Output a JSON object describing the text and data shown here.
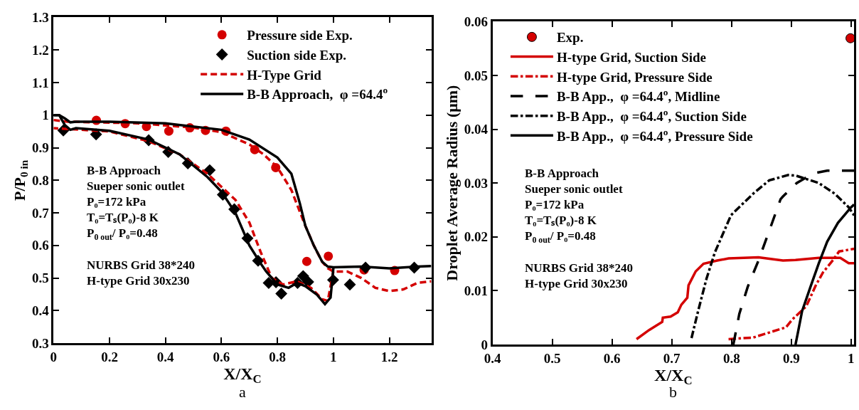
{
  "chart_data": [
    {
      "type": "line",
      "xlabel": "X/X$_{C}$",
      "ylabel": "P/P$_{0 in}$",
      "xlim": [
        0,
        1.35
      ],
      "xticks": [
        0,
        0.2,
        0.4,
        0.6,
        0.8,
        1,
        1.2
      ],
      "ylim": [
        0.3,
        1.3
      ],
      "yticks": [
        0.3,
        0.4,
        0.5,
        0.6,
        0.7,
        0.8,
        0.9,
        1,
        1.1,
        1.2,
        1.3
      ],
      "legend": "top",
      "annotations": [
        "B-B Approach\nSueper sonic outlet\nP₀=172 kPa\nT₀=Tₛ(P₀)-8 K\nP$_{0 out}$/ P₀=0.48\n\nNURBS Grid 38*240\nH-type Grid 30x230",
        "a"
      ],
      "series": [
        {
          "name": "Pressure side Exp.",
          "type": "scatter",
          "marker": "circle",
          "color": "#d40000",
          "x": [
            0.153,
            0.256,
            0.332,
            0.412,
            0.487,
            0.543,
            0.616,
            0.719,
            0.794,
            0.905,
            0.982,
            1.11,
            1.219
          ],
          "values": [
            0.984,
            0.974,
            0.965,
            0.951,
            0.961,
            0.953,
            0.951,
            0.894,
            0.839,
            0.551,
            0.567,
            0.525,
            0.523
          ]
        },
        {
          "name": "Suction side Exp.",
          "type": "scatter",
          "marker": "diamond",
          "color": "#000000",
          "x": [
            0.035,
            0.152,
            0.34,
            0.41,
            0.48,
            0.558,
            0.605,
            0.646,
            0.693,
            0.731,
            0.769,
            0.795,
            0.814,
            0.872,
            0.892,
            0.91,
            0.999,
            1.059,
            1.115,
            1.289
          ],
          "values": [
            0.953,
            0.941,
            0.923,
            0.887,
            0.852,
            0.831,
            0.756,
            0.711,
            0.622,
            0.553,
            0.485,
            0.487,
            0.452,
            0.485,
            0.506,
            0.488,
            0.494,
            0.48,
            0.532,
            0.532
          ]
        },
        {
          "name": "H-Type Grid",
          "line_style": "dashed",
          "color": "#d40000",
          "x": [
            0,
            0.05,
            0.3,
            0.5,
            0.6,
            0.7,
            0.75,
            0.8,
            0.85,
            0.9,
            0.93,
            0.96,
            0.98,
            1.0,
            1.05,
            1.1,
            1.15,
            1.2,
            1.25,
            1.3,
            1.35
          ],
          "values": [
            0.985,
            0.98,
            0.975,
            0.962,
            0.948,
            0.91,
            0.88,
            0.84,
            0.77,
            0.66,
            0.6,
            0.55,
            0.53,
            0.52,
            0.52,
            0.5,
            0.47,
            0.46,
            0.465,
            0.485,
            0.49
          ]
        },
        {
          "line_style": "dashed",
          "color": "#d40000",
          "x": [
            1.0,
            0.98,
            0.96,
            0.92,
            0.87,
            0.82,
            0.78,
            0.74,
            0.7,
            0.65,
            0.6,
            0.55,
            0.45,
            0.34,
            0.2,
            0.1,
            0
          ],
          "values": [
            0.52,
            0.43,
            0.435,
            0.47,
            0.49,
            0.48,
            0.5,
            0.58,
            0.67,
            0.74,
            0.78,
            0.82,
            0.88,
            0.92,
            0.95,
            0.955,
            0.96
          ]
        },
        {
          "name": "B-B Approach,  φ =64.4$^{o}$",
          "line_style": "solid",
          "color": "#000000",
          "x": [
            0,
            0.02,
            0.04,
            0.06,
            0.08,
            0.2,
            0.4,
            0.6,
            0.7,
            0.8,
            0.85,
            0.88,
            0.9,
            0.93,
            0.96,
            0.98,
            1.0,
            1.1,
            1.2,
            1.3,
            1.35
          ],
          "values": [
            1.0,
            1.0,
            0.99,
            0.978,
            0.98,
            0.98,
            0.975,
            0.955,
            0.925,
            0.87,
            0.82,
            0.73,
            0.66,
            0.6,
            0.55,
            0.535,
            0.533,
            0.535,
            0.53,
            0.535,
            0.537
          ]
        },
        {
          "line_style": "solid",
          "color": "#000000",
          "x": [
            0,
            0.02,
            0.04,
            0.06,
            0.08,
            0.2,
            0.34,
            0.45,
            0.55,
            0.6,
            0.65,
            0.7,
            0.74,
            0.76,
            0.8,
            0.84,
            0.87,
            0.9,
            0.94,
            0.97,
            0.99,
            1.0
          ],
          "values": [
            1.0,
            1.0,
            0.97,
            0.955,
            0.96,
            0.952,
            0.925,
            0.88,
            0.81,
            0.765,
            0.7,
            0.6,
            0.545,
            0.52,
            0.48,
            0.47,
            0.485,
            0.475,
            0.45,
            0.42,
            0.44,
            0.53
          ]
        }
      ]
    },
    {
      "type": "line",
      "xlabel": "X/X$_{C}$",
      "ylabel": "Droplet Average Radius (μm)",
      "xlim": [
        0.4,
        1.005
      ],
      "xticks": [
        0.4,
        0.5,
        0.6,
        0.7,
        0.8,
        0.9,
        1
      ],
      "ylim": [
        0,
        0.06
      ],
      "yticks": [
        0,
        0.01,
        0.02,
        0.03,
        0.04,
        0.05,
        0.06
      ],
      "legend": "top left",
      "annotations": [
        "B-B Approach\nSueper sonic outlet\nP₀=172 kPa\nT₀=Tₛ(P₀)-8 K\nP$_{0 out}$/ P₀=0.48\n\nNURBS Grid 38*240\nH-type Grid 30x230",
        "b"
      ],
      "series": [
        {
          "name": "Exp.",
          "type": "scatter",
          "marker": "circle",
          "color": "#d40000",
          "x": [
            0.999
          ],
          "values": [
            0.0569
          ]
        },
        {
          "name": "H-type Grid, Suction Side",
          "line_style": "solid",
          "color": "#d40000",
          "x": [
            0.641,
            0.662,
            0.684,
            0.685,
            0.698,
            0.71,
            0.716,
            0.726,
            0.728,
            0.74,
            0.753,
            0.776,
            0.795,
            0.845,
            0.886,
            0.907,
            0.946,
            0.982,
            0.996,
            1.005
          ],
          "values": [
            0.001,
            0.0027,
            0.0042,
            0.005,
            0.0052,
            0.006,
            0.0074,
            0.0087,
            0.011,
            0.0136,
            0.015,
            0.0156,
            0.016,
            0.0162,
            0.0156,
            0.0157,
            0.0161,
            0.0161,
            0.0151,
            0.0151
          ]
        },
        {
          "name": "H-type Grid, Pressure Side",
          "line_style": "dashdot",
          "color": "#d40000",
          "x": [
            0.795,
            0.836,
            0.891,
            0.902,
            0.925,
            0.941,
            0.953,
            0.969,
            0.98,
            0.996,
            1.005
          ],
          "values": [
            0.001,
            0.0013,
            0.0032,
            0.0047,
            0.0071,
            0.011,
            0.0134,
            0.0156,
            0.0173,
            0.0176,
            0.0178
          ]
        },
        {
          "name": "B-B App.,  φ =64.4$^{o}$, Midline",
          "line_style": "longdash",
          "color": "#000000",
          "x": [
            0.803,
            0.813,
            0.827,
            0.845,
            0.863,
            0.882,
            0.886,
            0.909,
            0.937,
            0.96,
            1.0,
            1.005
          ],
          "values": [
            0,
            0.0057,
            0.0107,
            0.0156,
            0.0211,
            0.027,
            0.0275,
            0.03,
            0.0318,
            0.0323,
            0.0323,
            0.0323
          ]
        },
        {
          "name": "B-B App.,  φ =64.4$^{o}$, Suction Side",
          "line_style": "dashdot",
          "color": "#000000",
          "x": [
            0.733,
            0.744,
            0.758,
            0.772,
            0.799,
            0.808,
            0.836,
            0.863,
            0.895,
            0.907,
            0.946,
            0.973,
            0.996,
            1.005
          ],
          "values": [
            0.0012,
            0.0062,
            0.0122,
            0.0171,
            0.024,
            0.025,
            0.028,
            0.0305,
            0.0315,
            0.0314,
            0.03,
            0.028,
            0.0255,
            0.024
          ]
        },
        {
          "name": "B-B App.,  φ =64.4$^{o}$, Pressure Side",
          "line_style": "solid",
          "color": "#000000",
          "x": [
            0.907,
            0.911,
            0.918,
            0.932,
            0.946,
            0.96,
            0.978,
            1.0,
            1.005
          ],
          "values": [
            0,
            0.0022,
            0.0062,
            0.0107,
            0.0151,
            0.0191,
            0.0226,
            0.0255,
            0.026
          ]
        }
      ]
    }
  ]
}
